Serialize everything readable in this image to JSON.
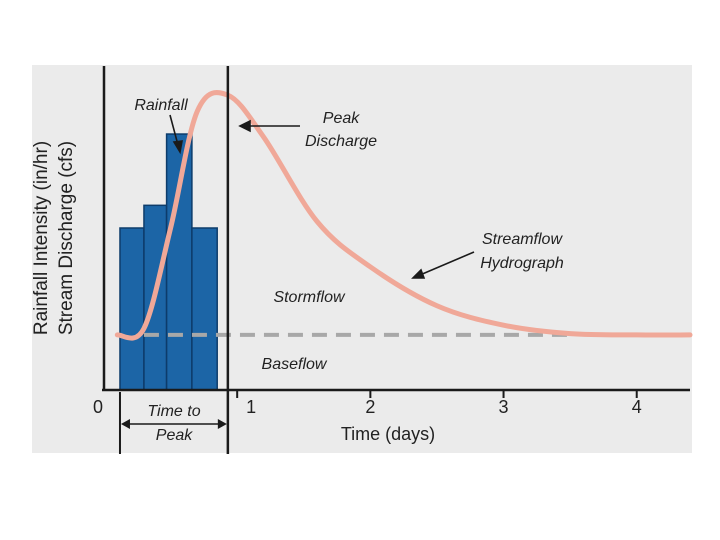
{
  "chart_data": {
    "type": "line",
    "title": "",
    "xlabel": "Time (days)",
    "ylabel_lines": [
      "Rainfall Intensity (in/hr)",
      "Stream Discharge (cfs)"
    ],
    "x_ticks": [
      "0",
      "1",
      "2",
      "3",
      "4"
    ],
    "xlim": [
      0,
      4.4
    ],
    "ylim": [
      0,
      1
    ],
    "series": [
      {
        "name": "Rainfall",
        "kind": "bar",
        "color": "#1c65a6",
        "edge_color": "#0d3c6b",
        "bars": [
          {
            "x0": 0.12,
            "x1": 0.3,
            "value": 0.5
          },
          {
            "x0": 0.3,
            "x1": 0.47,
            "value": 0.57
          },
          {
            "x0": 0.47,
            "x1": 0.66,
            "value": 0.79
          },
          {
            "x0": 0.66,
            "x1": 0.85,
            "value": 0.5
          }
        ]
      },
      {
        "name": "Streamflow Hydrograph",
        "kind": "line",
        "color": "#f0a898",
        "points": [
          [
            0.1,
            0.17
          ],
          [
            0.3,
            0.19
          ],
          [
            0.5,
            0.5
          ],
          [
            0.7,
            0.86
          ],
          [
            0.93,
            0.91
          ],
          [
            1.2,
            0.78
          ],
          [
            1.6,
            0.52
          ],
          [
            2.0,
            0.38
          ],
          [
            2.5,
            0.26
          ],
          [
            3.0,
            0.2
          ],
          [
            3.5,
            0.174
          ],
          [
            4.0,
            0.17
          ],
          [
            4.4,
            0.17
          ]
        ]
      },
      {
        "name": "Baseflow",
        "kind": "dashed",
        "color": "#a8a8a8",
        "points": [
          [
            0.3,
            0.17
          ],
          [
            3.5,
            0.17
          ]
        ]
      }
    ],
    "peak_time": 0.93,
    "time_to_peak_span": [
      0.12,
      0.93
    ],
    "annotations": {
      "rainfall": "Rainfall",
      "peak_line1": "Peak",
      "peak_line2": "Discharge",
      "streamflow_line1": "Streamflow",
      "streamflow_line2": "Hydrograph",
      "stormflow": "Stormflow",
      "baseflow": "Baseflow",
      "time_to_peak_line1": "Time to",
      "time_to_peak_line2": "Peak"
    }
  },
  "colors": {
    "panel_background": "#ebebeb",
    "axis": "#1a1a1a",
    "text": "#222222"
  }
}
